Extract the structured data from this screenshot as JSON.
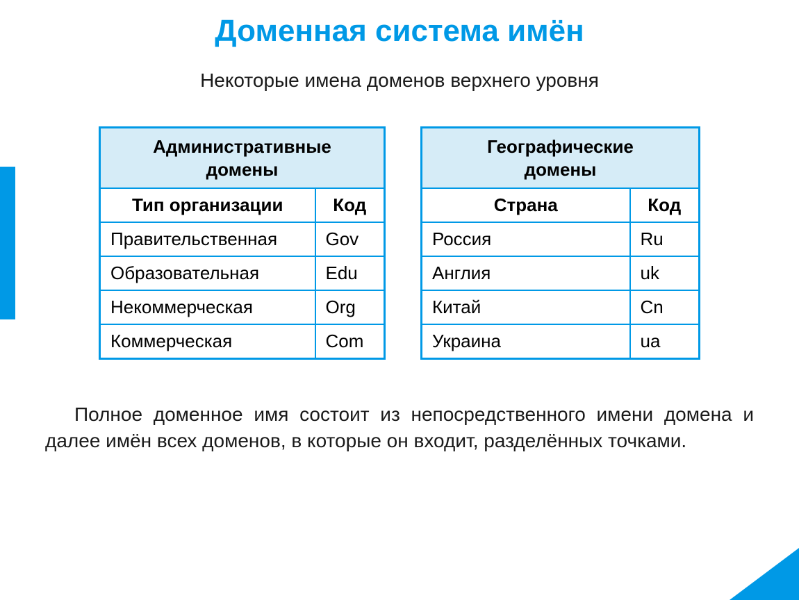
{
  "title": "Доменная система имён",
  "subtitle": "Некоторые имена доменов верхнего уровня",
  "colors": {
    "accent": "#0099e6",
    "header_bg": "#d6ecf7",
    "text": "#1a1a1a",
    "page_bg": "#ffffff"
  },
  "tables": {
    "admin": {
      "caption_line1": "Административные",
      "caption_line2": "домены",
      "col1": "Тип организации",
      "col2": "Код",
      "rows": [
        {
          "label": "Правительственная",
          "code": "Gov"
        },
        {
          "label": "Образовательная",
          "code": "Edu"
        },
        {
          "label": "Некоммерческая",
          "code": "Org"
        },
        {
          "label": "Коммерческая",
          "code": "Com"
        }
      ]
    },
    "geo": {
      "caption_line1": "Географические",
      "caption_line2": "домены",
      "col1": "Страна",
      "col2": "Код",
      "rows": [
        {
          "label": "Россия",
          "code": "Ru"
        },
        {
          "label": "Англия",
          "code": "uk"
        },
        {
          "label": "Китай",
          "code": "Cn"
        },
        {
          "label": "Украина",
          "code": "ua"
        }
      ]
    }
  },
  "footnote": "Полное доменное имя состоит из непосредственного имени домена и далее имён всех доменов, в которые он входит, разделённых точками."
}
